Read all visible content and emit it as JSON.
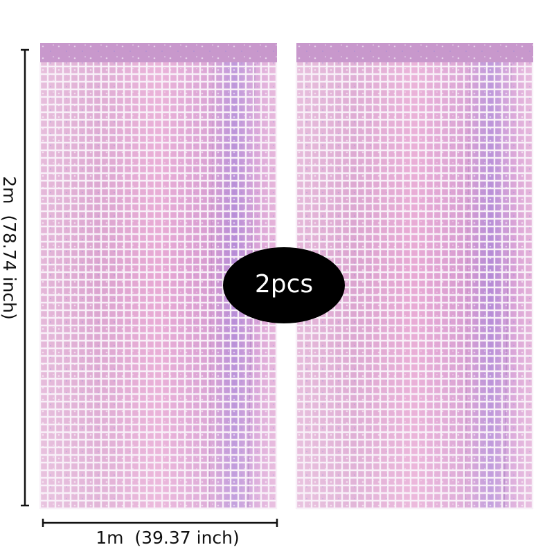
{
  "dimensions": {
    "height": "2m  (78.74 inch)",
    "width": "1m  (39.37 inch)"
  },
  "badge": "2pcs"
}
